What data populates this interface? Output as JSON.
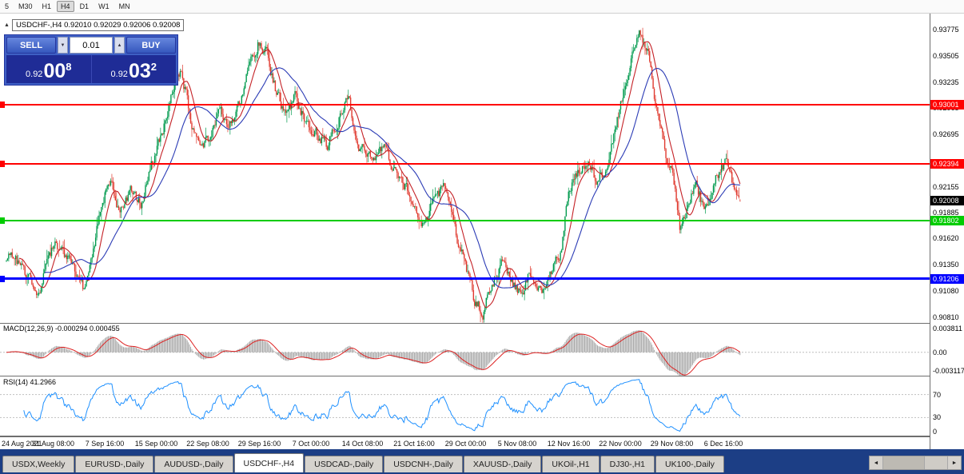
{
  "toolbar": {
    "timeframes": [
      "5",
      "M30",
      "H1",
      "H4",
      "D1",
      "W1",
      "MN"
    ],
    "active_timeframe": "H4"
  },
  "header": {
    "symbol": "USDCHF-,H4",
    "ohlc": "0.92010 0.92029 0.92006 0.92008"
  },
  "trade_panel": {
    "sell_label": "SELL",
    "buy_label": "BUY",
    "lot_size": "0.01",
    "sell_price": {
      "base": "0.92",
      "big": "00",
      "sup": "8"
    },
    "buy_price": {
      "base": "0.92",
      "big": "03",
      "sup": "2"
    }
  },
  "price_tags": [
    {
      "name": "resistance-line-1",
      "label": "0.93001",
      "value": 0.93001,
      "color": "#FF0000",
      "type": "hline",
      "thickness": 2
    },
    {
      "name": "resistance-line-2",
      "label": "0.92394",
      "value": 0.92394,
      "color": "#FF0000",
      "type": "hline",
      "thickness": 2
    },
    {
      "name": "current-price",
      "label": "0.92008",
      "value": 0.92008,
      "color": "#000000",
      "type": "price",
      "thickness": 0
    },
    {
      "name": "support-line-1",
      "label": "0.91802",
      "value": 0.91802,
      "color": "#00CC00",
      "type": "hline",
      "thickness": 2
    },
    {
      "name": "support-line-2",
      "label": "0.91206",
      "value": 0.91206,
      "color": "#0000FF",
      "type": "hline",
      "thickness": 3
    }
  ],
  "indicators": {
    "macd": {
      "label": "MACD(12,26,9) -0.000294 0.000455",
      "params": [
        12,
        26,
        9
      ],
      "axis_labels": [
        {
          "label": "0.003811",
          "value": 0.003811
        },
        {
          "label": "0.00",
          "value": 0
        },
        {
          "label": "-0.003117",
          "value": -0.003117
        }
      ]
    },
    "rsi": {
      "label": "RSI(14) 41.2966",
      "period": 14,
      "value": 41.2966,
      "levels": [
        70,
        30
      ],
      "axis_labels": [
        {
          "label": "70",
          "value": 70
        },
        {
          "label": "30",
          "value": 30
        },
        {
          "label": "0",
          "value": 0
        }
      ]
    }
  },
  "chart_data": {
    "type": "candlestick",
    "symbol": "USDCHF",
    "timeframe": "H4",
    "ohlc_current": {
      "open": 0.9201,
      "high": 0.92029,
      "low": 0.92006,
      "close": 0.92008
    },
    "visible_range": {
      "high": 0.9394,
      "low": 0.9075
    },
    "macd_range": {
      "max": 0.003811,
      "min": -0.003117
    },
    "y_labels": [
      {
        "label": "0.93775",
        "value": 0.93775
      },
      {
        "label": "0.93505",
        "value": 0.93505
      },
      {
        "label": "0.93235",
        "value": 0.93235
      },
      {
        "label": "0.92965",
        "value": 0.92965
      },
      {
        "label": "0.92695",
        "value": 0.92695
      },
      {
        "label": "0.92155",
        "value": 0.92155
      },
      {
        "label": "0.91885",
        "value": 0.91885
      },
      {
        "label": "0.91620",
        "value": 0.9162
      },
      {
        "label": "0.91350",
        "value": 0.9135
      },
      {
        "label": "0.91080",
        "value": 0.9108
      },
      {
        "label": "0.90810",
        "value": 0.9081
      }
    ],
    "x_labels": [
      "24 Aug 2021",
      "31 Aug 08:00",
      "7 Sep 16:00",
      "15 Sep 00:00",
      "22 Sep 08:00",
      "29 Sep 16:00",
      "7 Oct 00:00",
      "14 Oct 08:00",
      "21 Oct 16:00",
      "29 Oct 00:00",
      "5 Nov 08:00",
      "12 Nov 16:00",
      "22 Nov 00:00",
      "29 Nov 08:00",
      "6 Dec 16:00"
    ],
    "hlines": [
      0.93001,
      0.92394,
      0.91802,
      0.91206
    ],
    "moving_averages": [
      {
        "period": 12,
        "color": "#C42126"
      },
      {
        "period": 34,
        "color": "#2B3BB5"
      }
    ],
    "price_path": [
      [
        0,
        0.9138
      ],
      [
        14,
        0.915
      ],
      [
        28,
        0.913
      ],
      [
        42,
        0.9112
      ],
      [
        50,
        0.9104
      ],
      [
        58,
        0.9142
      ],
      [
        70,
        0.9158
      ],
      [
        82,
        0.9145
      ],
      [
        94,
        0.9128
      ],
      [
        104,
        0.9112
      ],
      [
        116,
        0.915
      ],
      [
        128,
        0.92
      ],
      [
        138,
        0.9222
      ],
      [
        150,
        0.9186
      ],
      [
        163,
        0.9212
      ],
      [
        176,
        0.9196
      ],
      [
        190,
        0.9238
      ],
      [
        204,
        0.9276
      ],
      [
        216,
        0.9312
      ],
      [
        227,
        0.9334
      ],
      [
        238,
        0.9288
      ],
      [
        250,
        0.9256
      ],
      [
        262,
        0.927
      ],
      [
        274,
        0.9294
      ],
      [
        286,
        0.9282
      ],
      [
        298,
        0.9298
      ],
      [
        310,
        0.933
      ],
      [
        323,
        0.9364
      ],
      [
        334,
        0.9352
      ],
      [
        346,
        0.9312
      ],
      [
        358,
        0.9288
      ],
      [
        370,
        0.9308
      ],
      [
        383,
        0.9282
      ],
      [
        396,
        0.9268
      ],
      [
        410,
        0.926
      ],
      [
        424,
        0.9288
      ],
      [
        436,
        0.9304
      ],
      [
        450,
        0.9256
      ],
      [
        464,
        0.9244
      ],
      [
        478,
        0.9258
      ],
      [
        492,
        0.9238
      ],
      [
        505,
        0.922
      ],
      [
        518,
        0.9196
      ],
      [
        530,
        0.9174
      ],
      [
        544,
        0.9204
      ],
      [
        557,
        0.9214
      ],
      [
        570,
        0.9168
      ],
      [
        582,
        0.9138
      ],
      [
        594,
        0.9098
      ],
      [
        604,
        0.9086
      ],
      [
        615,
        0.9114
      ],
      [
        627,
        0.9134
      ],
      [
        639,
        0.9118
      ],
      [
        651,
        0.9104
      ],
      [
        664,
        0.9128
      ],
      [
        677,
        0.9108
      ],
      [
        690,
        0.913
      ],
      [
        702,
        0.915
      ],
      [
        711,
        0.9208
      ],
      [
        721,
        0.9226
      ],
      [
        734,
        0.9242
      ],
      [
        747,
        0.9218
      ],
      [
        759,
        0.9234
      ],
      [
        771,
        0.9278
      ],
      [
        783,
        0.9328
      ],
      [
        794,
        0.9358
      ],
      [
        801,
        0.9373
      ],
      [
        811,
        0.935
      ],
      [
        821,
        0.9302
      ],
      [
        833,
        0.9252
      ],
      [
        843,
        0.9222
      ],
      [
        851,
        0.9166
      ],
      [
        861,
        0.92
      ],
      [
        871,
        0.9222
      ],
      [
        881,
        0.919
      ],
      [
        891,
        0.9214
      ],
      [
        901,
        0.9234
      ],
      [
        910,
        0.9244
      ],
      [
        918,
        0.9214
      ],
      [
        925,
        0.9201
      ]
    ]
  },
  "tabs": [
    "USDX,Weekly",
    "EURUSD-,Daily",
    "AUDUSD-,Daily",
    "USDCHF-,H4",
    "USDCAD-,Daily",
    "USDCNH-,Daily",
    "XAUUSD-,Daily",
    "UKOil-,H1",
    "DJ30-,H1",
    "UK100-,Daily"
  ],
  "active_tab": "USDCHF-,H4",
  "colors": {
    "bull": "#009A4E",
    "bear": "#E03A2F",
    "macd_hist": "#A9A9A9",
    "macd_signal": "#DD2222",
    "rsi_line": "#1E90FF",
    "tabbar_bg": "#1C3E85"
  }
}
